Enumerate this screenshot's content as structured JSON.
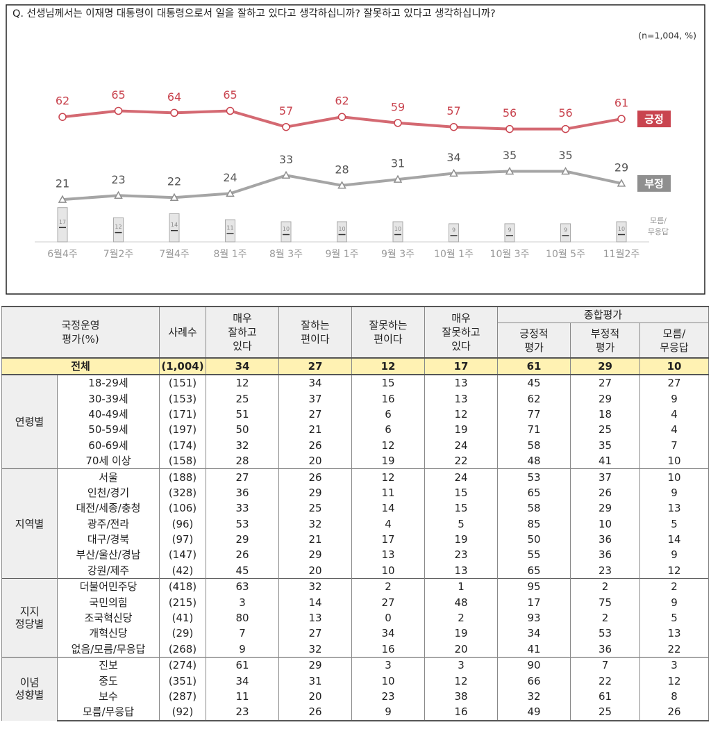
{
  "chart_data": {
    "type": "line",
    "title": "Q. 선생님께서는 이재명 대통령이 대통령으로서 일을 잘하고 있다고 생각하십니까? 잘못하고 있다고 생각하십니까?",
    "subtitle": "(n=1,004, %)",
    "categories": [
      "6월4주",
      "7월2주",
      "7월4주",
      "8월 1주",
      "8월 3주",
      "9월 1주",
      "9월 3주",
      "10월 1주",
      "10월 3주",
      "10월 5주",
      "11월2주"
    ],
    "ylim": [
      0,
      80
    ],
    "series": [
      {
        "name": "긍정",
        "color": "#c9444f",
        "marker": "circle",
        "values": [
          62,
          65,
          64,
          65,
          57,
          62,
          59,
          57,
          56,
          56,
          61
        ]
      },
      {
        "name": "부정",
        "color": "#8f8f8f",
        "marker": "triangle",
        "values": [
          21,
          23,
          22,
          24,
          33,
          28,
          31,
          34,
          35,
          35,
          29
        ]
      },
      {
        "name": "모름/ 무응답",
        "color": "#e6e6e6",
        "style": "bar",
        "values": [
          17,
          12,
          14,
          11,
          10,
          10,
          10,
          9,
          9,
          9,
          10
        ]
      }
    ]
  },
  "table": {
    "header": [
      "국정운영 평가(%)",
      "사례수",
      "매우 잘하고 있다",
      "잘하는 편이다",
      "잘못하는 편이다",
      "매우 잘못하고 있다",
      "긍정적 평가",
      "부정적 평가",
      "모름/ 무응답"
    ],
    "group_header": "종합평가",
    "total": [
      "전체",
      "(1,004)",
      34,
      27,
      12,
      17,
      61,
      29,
      10
    ],
    "groups": [
      {
        "name": "연령별",
        "rows": [
          [
            "18-29세",
            "(151)",
            12,
            34,
            15,
            13,
            45,
            27,
            27
          ],
          [
            "30-39세",
            "(153)",
            25,
            37,
            16,
            13,
            62,
            29,
            9
          ],
          [
            "40-49세",
            "(171)",
            51,
            27,
            6,
            12,
            77,
            18,
            4
          ],
          [
            "50-59세",
            "(197)",
            50,
            21,
            6,
            19,
            71,
            25,
            4
          ],
          [
            "60-69세",
            "(174)",
            32,
            26,
            12,
            24,
            58,
            35,
            7
          ],
          [
            "70세 이상",
            "(158)",
            28,
            20,
            19,
            22,
            48,
            41,
            10
          ]
        ]
      },
      {
        "name": "지역별",
        "rows": [
          [
            "서울",
            "(188)",
            27,
            26,
            12,
            24,
            53,
            37,
            10
          ],
          [
            "인천/경기",
            "(328)",
            36,
            29,
            11,
            15,
            65,
            26,
            9
          ],
          [
            "대전/세종/충청",
            "(106)",
            33,
            25,
            14,
            15,
            58,
            29,
            13
          ],
          [
            "광주/전라",
            "(96)",
            53,
            32,
            4,
            5,
            85,
            10,
            5
          ],
          [
            "대구/경북",
            "(97)",
            29,
            21,
            17,
            19,
            50,
            36,
            14
          ],
          [
            "부산/울산/경남",
            "(147)",
            26,
            29,
            13,
            23,
            55,
            36,
            9
          ],
          [
            "강원/제주",
            "(42)",
            45,
            20,
            10,
            13,
            65,
            23,
            12
          ]
        ]
      },
      {
        "name": "지지 정당별",
        "rows": [
          [
            "더불어민주당",
            "(418)",
            63,
            32,
            2,
            1,
            95,
            2,
            2
          ],
          [
            "국민의힘",
            "(215)",
            3,
            14,
            27,
            48,
            17,
            75,
            9
          ],
          [
            "조국혁신당",
            "(41)",
            80,
            13,
            0,
            2,
            93,
            2,
            5
          ],
          [
            "개혁신당",
            "(29)",
            7,
            27,
            34,
            19,
            34,
            53,
            13
          ],
          [
            "없음/모름/무응답",
            "(268)",
            9,
            32,
            16,
            20,
            41,
            36,
            22
          ]
        ]
      },
      {
        "name": "이념 성향별",
        "rows": [
          [
            "진보",
            "(274)",
            61,
            29,
            3,
            3,
            90,
            7,
            3
          ],
          [
            "중도",
            "(351)",
            34,
            31,
            10,
            12,
            66,
            22,
            12
          ],
          [
            "보수",
            "(287)",
            11,
            20,
            23,
            38,
            32,
            61,
            8
          ],
          [
            "모름/무응답",
            "(92)",
            23,
            26,
            9,
            16,
            49,
            25,
            26
          ]
        ]
      }
    ]
  }
}
